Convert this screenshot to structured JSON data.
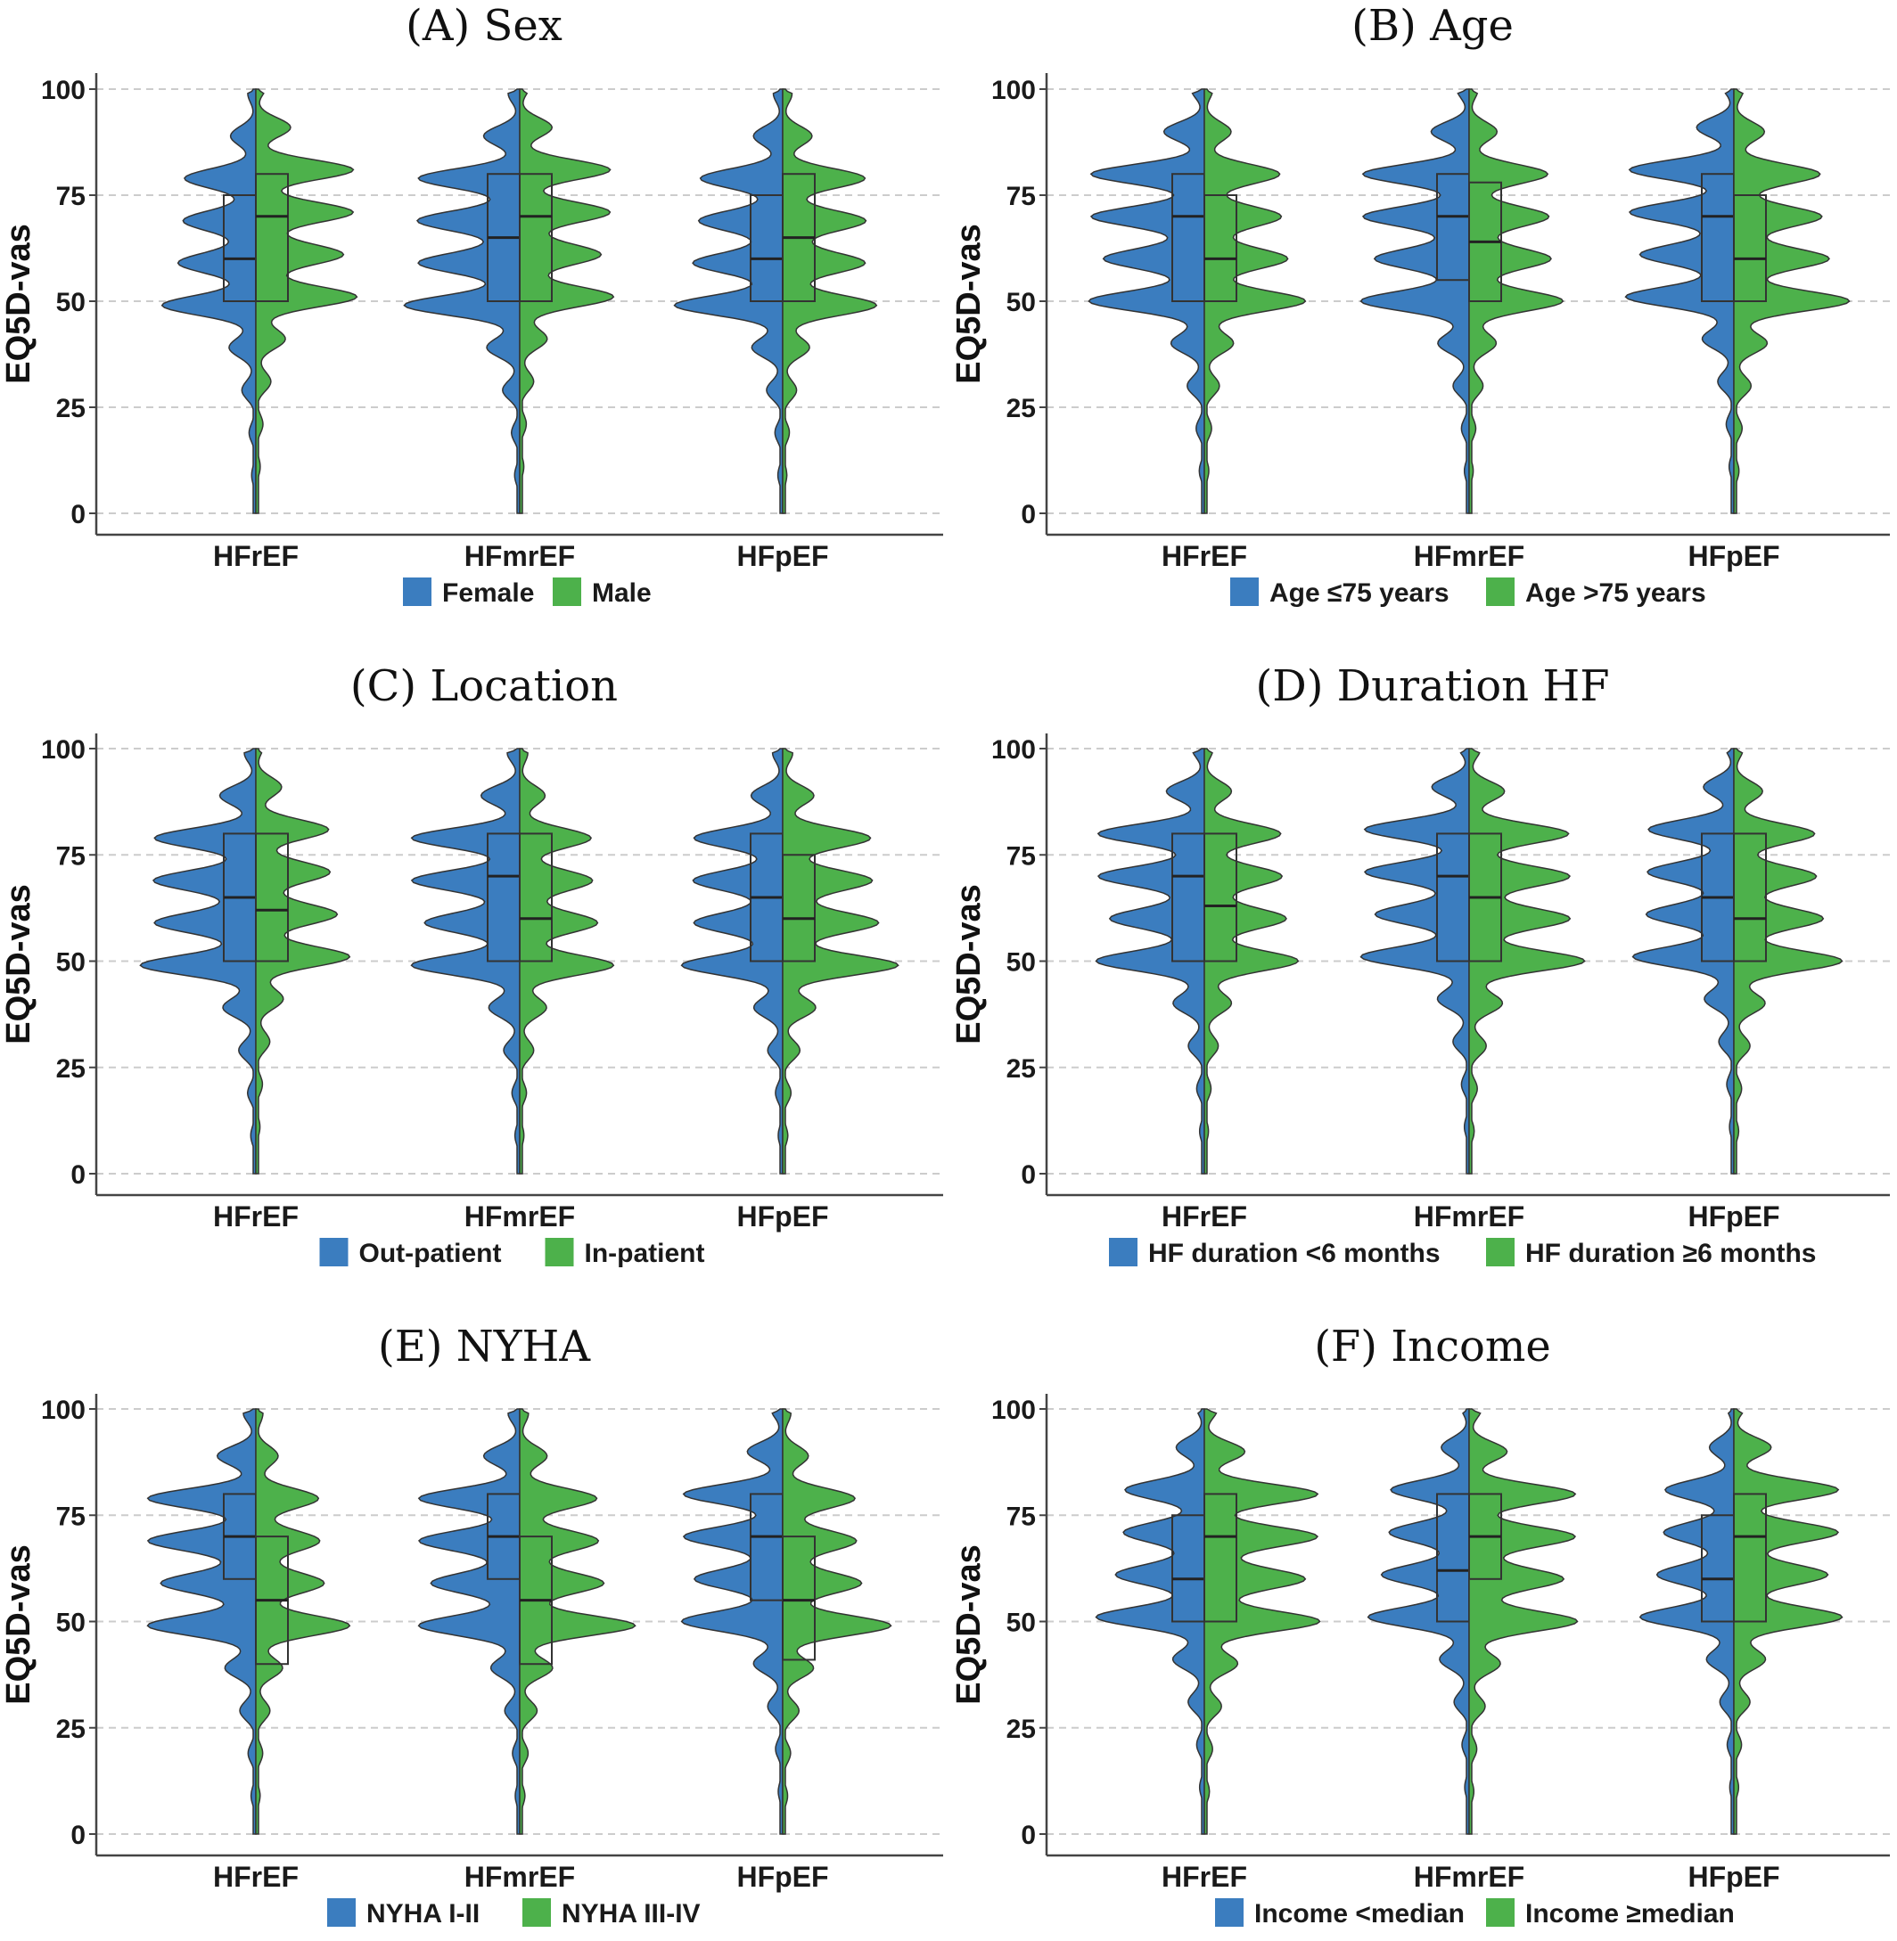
{
  "colors": {
    "group1": "#3b7dbf",
    "group2": "#4db14b",
    "outline": "#555555",
    "grid": "#cccccc"
  },
  "chart_data": [
    {
      "type": "violin",
      "title": "(A) Sex",
      "ylabel": "EQ5D-vas",
      "xlabel": "",
      "ylim": [
        0,
        100
      ],
      "yticks": [
        0,
        25,
        50,
        75,
        100
      ],
      "grid": true,
      "legend_position": "bottom",
      "categories": [
        "HFrEF",
        "HFmrEF",
        "HFpEF"
      ],
      "series": [
        {
          "name": "Female",
          "color": "#3b7dbf",
          "box": [
            [
              50,
              60,
              75
            ],
            [
              50,
              65,
              80
            ],
            [
              50,
              60,
              75
            ]
          ]
        },
        {
          "name": "Male",
          "color": "#4db14b",
          "box": [
            [
              50,
              70,
              80
            ],
            [
              50,
              70,
              80
            ],
            [
              50,
              65,
              80
            ]
          ]
        }
      ]
    },
    {
      "type": "violin",
      "title": "(B) Age",
      "ylabel": "EQ5D-vas",
      "xlabel": "",
      "ylim": [
        0,
        100
      ],
      "yticks": [
        0,
        25,
        50,
        75,
        100
      ],
      "grid": true,
      "legend_position": "bottom",
      "categories": [
        "HFrEF",
        "HFmrEF",
        "HFpEF"
      ],
      "series": [
        {
          "name": "Age ≤75 years",
          "color": "#3b7dbf",
          "box": [
            [
              50,
              70,
              80
            ],
            [
              55,
              70,
              80
            ],
            [
              50,
              70,
              80
            ]
          ]
        },
        {
          "name": "Age >75 years",
          "color": "#4db14b",
          "box": [
            [
              50,
              60,
              75
            ],
            [
              50,
              64,
              78
            ],
            [
              50,
              60,
              75
            ]
          ]
        }
      ]
    },
    {
      "type": "violin",
      "title": "(C) Location",
      "ylabel": "EQ5D-vas",
      "xlabel": "",
      "ylim": [
        0,
        100
      ],
      "yticks": [
        0,
        25,
        50,
        75,
        100
      ],
      "grid": true,
      "legend_position": "bottom",
      "categories": [
        "HFrEF",
        "HFmrEF",
        "HFpEF"
      ],
      "series": [
        {
          "name": "Out-patient",
          "color": "#3b7dbf",
          "box": [
            [
              50,
              65,
              80
            ],
            [
              50,
              70,
              80
            ],
            [
              50,
              65,
              80
            ]
          ]
        },
        {
          "name": "In-patient",
          "color": "#4db14b",
          "box": [
            [
              50,
              62,
              80
            ],
            [
              50,
              60,
              80
            ],
            [
              50,
              60,
              75
            ]
          ]
        }
      ]
    },
    {
      "type": "violin",
      "title": "(D) Duration HF",
      "ylabel": "EQ5D-vas",
      "xlabel": "",
      "ylim": [
        0,
        100
      ],
      "yticks": [
        0,
        25,
        50,
        75,
        100
      ],
      "grid": true,
      "legend_position": "bottom",
      "categories": [
        "HFrEF",
        "HFmrEF",
        "HFpEF"
      ],
      "series": [
        {
          "name": "HF duration <6 months",
          "color": "#3b7dbf",
          "box": [
            [
              50,
              70,
              80
            ],
            [
              50,
              70,
              80
            ],
            [
              50,
              65,
              80
            ]
          ]
        },
        {
          "name": "HF duration ≥6 months",
          "color": "#4db14b",
          "box": [
            [
              50,
              63,
              80
            ],
            [
              50,
              65,
              80
            ],
            [
              50,
              60,
              80
            ]
          ]
        }
      ]
    },
    {
      "type": "violin",
      "title": "(E) NYHA",
      "ylabel": "EQ5D-vas",
      "xlabel": "",
      "ylim": [
        0,
        100
      ],
      "yticks": [
        0,
        25,
        50,
        75,
        100
      ],
      "grid": true,
      "legend_position": "bottom",
      "categories": [
        "HFrEF",
        "HFmrEF",
        "HFpEF"
      ],
      "series": [
        {
          "name": "NYHA I-II",
          "color": "#3b7dbf",
          "box": [
            [
              60,
              70,
              80
            ],
            [
              60,
              70,
              80
            ],
            [
              55,
              70,
              80
            ]
          ]
        },
        {
          "name": "NYHA III-IV",
          "color": "#4db14b",
          "box": [
            [
              40,
              55,
              70
            ],
            [
              40,
              55,
              70
            ],
            [
              41,
              55,
              70
            ]
          ]
        }
      ]
    },
    {
      "type": "violin",
      "title": "(F) Income",
      "ylabel": "EQ5D-vas",
      "xlabel": "",
      "ylim": [
        0,
        100
      ],
      "yticks": [
        0,
        25,
        50,
        75,
        100
      ],
      "grid": true,
      "legend_position": "bottom",
      "categories": [
        "HFrEF",
        "HFmrEF",
        "HFpEF"
      ],
      "series": [
        {
          "name": "Income <median",
          "color": "#3b7dbf",
          "box": [
            [
              50,
              60,
              75
            ],
            [
              50,
              62,
              80
            ],
            [
              50,
              60,
              75
            ]
          ]
        },
        {
          "name": "Income ≥median",
          "color": "#4db14b",
          "box": [
            [
              50,
              70,
              80
            ],
            [
              60,
              70,
              80
            ],
            [
              50,
              70,
              80
            ]
          ]
        }
      ]
    }
  ]
}
